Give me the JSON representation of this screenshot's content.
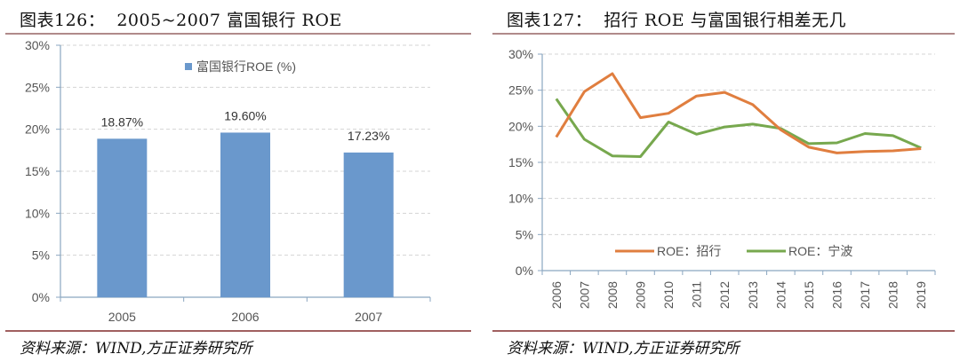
{
  "left": {
    "title": "图表126：  2005~2007 富国银行 ROE",
    "source": "资料来源：WIND,方正证券研究所"
  },
  "right": {
    "title": "图表127：  招行 ROE 与富国银行相差无几",
    "source": "资料来源：WIND,方正证券研究所"
  },
  "colors": {
    "bar": "#6a98cc",
    "cmb": "#e07e3f",
    "nb": "#77a84e",
    "axis": "#8aa6c0",
    "grid": "#d4d4d4",
    "tick_text": "#555555",
    "title_rule": "#b08a8a"
  },
  "chart_data": [
    {
      "type": "bar",
      "title": "2005~2007 富国银行 ROE",
      "categories": [
        "2005",
        "2006",
        "2007"
      ],
      "series": [
        {
          "name": "富国银行ROE (%)",
          "values": [
            18.87,
            19.6,
            17.23
          ]
        }
      ],
      "data_labels": [
        "18.87%",
        "19.60%",
        "17.23%"
      ],
      "ylim": [
        0,
        30
      ],
      "yticks": [
        "0%",
        "5%",
        "10%",
        "15%",
        "20%",
        "25%",
        "30%"
      ],
      "xlabel": "",
      "ylabel": "",
      "grid": true,
      "legend_position": "top"
    },
    {
      "type": "line",
      "title": "招行 ROE 与富国银行相差无几",
      "categories": [
        "2006",
        "2007",
        "2008",
        "2009",
        "2010",
        "2011",
        "2012",
        "2013",
        "2014",
        "2015",
        "2016",
        "2017",
        "2018",
        "2019"
      ],
      "series": [
        {
          "name": "ROE：招行",
          "values": [
            18.5,
            24.8,
            27.3,
            21.2,
            21.8,
            24.2,
            24.7,
            23.0,
            19.5,
            17.1,
            16.3,
            16.5,
            16.6,
            16.9
          ]
        },
        {
          "name": "ROE：宁波",
          "values": [
            23.8,
            18.2,
            15.9,
            15.8,
            20.6,
            18.9,
            19.9,
            20.3,
            19.7,
            17.6,
            17.7,
            19.0,
            18.7,
            17.0
          ]
        }
      ],
      "ylim": [
        0,
        30
      ],
      "yticks": [
        "0%",
        "5%",
        "10%",
        "15%",
        "20%",
        "25%",
        "30%"
      ],
      "xlabel": "",
      "ylabel": "",
      "grid": true,
      "legend_position": "bottom-inside"
    }
  ]
}
